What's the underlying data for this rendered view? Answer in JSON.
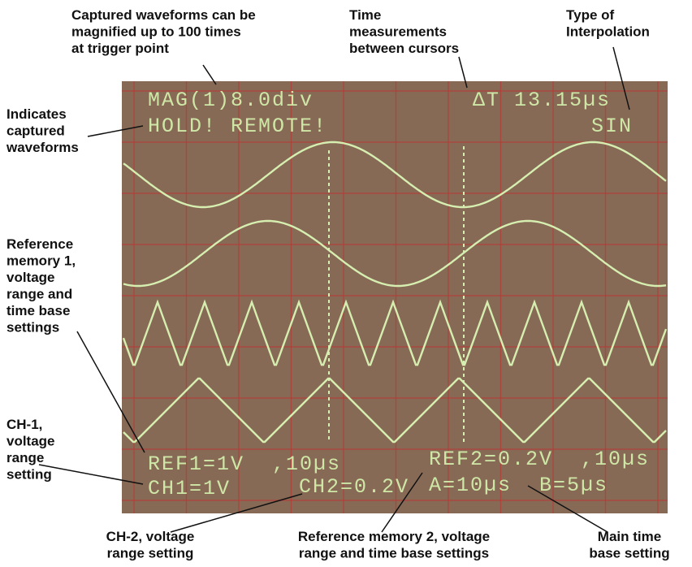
{
  "annotations": {
    "magnify": [
      "Captured waveforms can be",
      "magnified up to 100 times",
      "at trigger point"
    ],
    "time": [
      "Time",
      "measurements",
      "between cursors"
    ],
    "interp": [
      "Type of",
      "Interpolation"
    ],
    "captured": [
      "Indicates",
      "captured",
      "waveforms"
    ],
    "ref1": [
      "Reference",
      "memory 1,",
      "voltage",
      "range and",
      "time base",
      "settings"
    ],
    "ch1": [
      "CH-1,",
      "voltage",
      "range",
      "setting"
    ],
    "ch2": [
      "CH-2, voltage",
      "range setting"
    ],
    "ref2": [
      "Reference memory 2, voltage",
      "range and time base settings"
    ],
    "main": [
      "Main time",
      "base setting"
    ]
  },
  "screen": {
    "mag": "MAG(1)8.0div",
    "delta": "ΔT 13.15µs",
    "hold": "HOLD! REMOTE!",
    "sin": "SIN",
    "ref1": "REF1=1V  ,10µs",
    "ref2": "REF2=0.2V  ,10µs",
    "ch1": "CH1=1V",
    "ch2": "CH2=0.2V",
    "timebase": "A=10µs  B=5µs"
  }
}
